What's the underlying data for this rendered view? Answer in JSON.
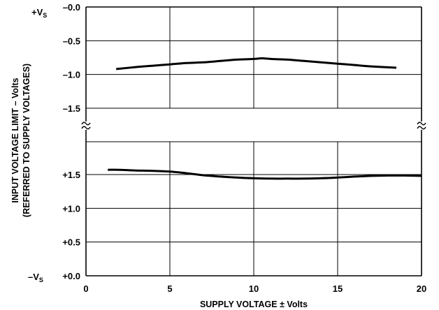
{
  "chart_data": {
    "type": "line",
    "title": "",
    "xlabel": "SUPPLY VOLTAGE ± Volts",
    "ylabel": "INPUT VOLTAGE LIMIT – Volts",
    "ylabel2": "(REFERRED TO SUPPLY VOLTAGES)",
    "xlim": [
      0,
      20
    ],
    "x_ticks": [
      "0",
      "5",
      "10",
      "15",
      "20"
    ],
    "grid": true,
    "top_panel": {
      "reference": "+VS",
      "ylim": [
        0,
        -1.5
      ],
      "y_ticks": [
        "–0.0",
        "–0.5",
        "–1.0",
        "–1.5"
      ],
      "series": [
        {
          "x": [
            1.8,
            3,
            4,
            5,
            6,
            7,
            8,
            9,
            10,
            10.5,
            11,
            12,
            13,
            14,
            15,
            16,
            17,
            18.5
          ],
          "y": [
            -0.92,
            -0.89,
            -0.87,
            -0.85,
            -0.83,
            -0.82,
            -0.8,
            -0.78,
            -0.77,
            -0.76,
            -0.77,
            -0.78,
            -0.8,
            -0.82,
            -0.84,
            -0.86,
            -0.88,
            -0.9
          ]
        }
      ]
    },
    "bottom_panel": {
      "reference": "–VS",
      "ylim": [
        0,
        2.0
      ],
      "y_ticks": [
        "+0.0",
        "+0.5",
        "+1.0",
        "+1.5"
      ],
      "series": [
        {
          "x": [
            1.3,
            2,
            3,
            4,
            5,
            6,
            7,
            8,
            9,
            10,
            11,
            12,
            13,
            14,
            15,
            16,
            17,
            18,
            19,
            20
          ],
          "y": [
            1.57,
            1.57,
            1.56,
            1.555,
            1.545,
            1.52,
            1.49,
            1.47,
            1.455,
            1.445,
            1.44,
            1.44,
            1.44,
            1.445,
            1.455,
            1.47,
            1.48,
            1.485,
            1.485,
            1.48
          ]
        }
      ]
    }
  }
}
